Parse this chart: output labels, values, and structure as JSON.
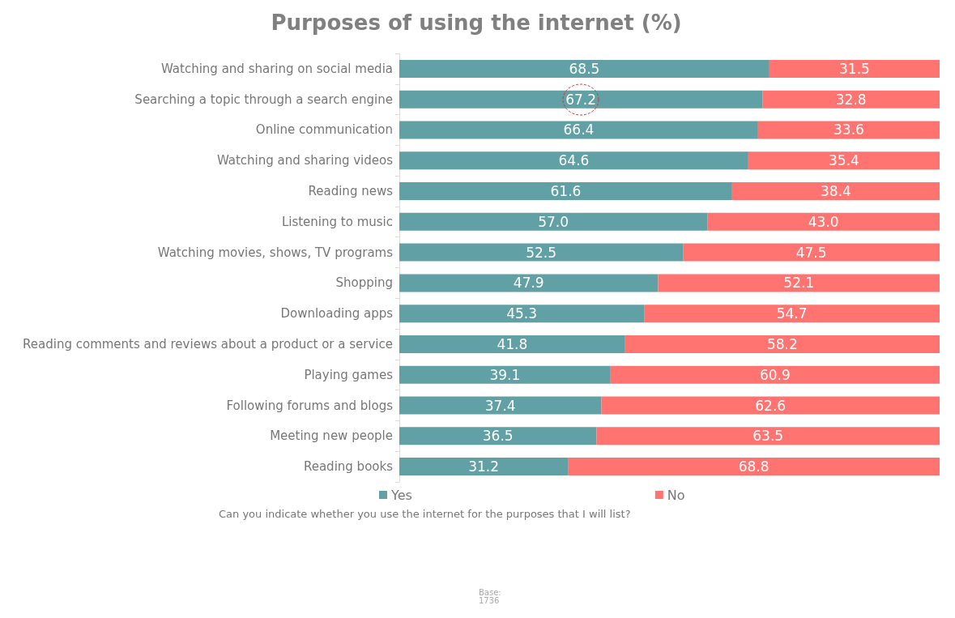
{
  "chart_data": {
    "type": "bar",
    "orientation": "horizontal",
    "stacked": true,
    "title": "Purposes of using the internet (%)",
    "categories": [
      "Watching and sharing on social media",
      "Searching a topic through a search engine",
      "Online communication",
      "Watching and sharing videos",
      "Reading news",
      "Listening to music",
      "Watching movies, shows, TV programs",
      "Shopping",
      "Downloading apps",
      "Reading comments and reviews about a product or a service",
      "Playing games",
      "Following forums and blogs",
      "Meeting new people",
      "Reading books"
    ],
    "series": [
      {
        "name": "Yes",
        "color": "#61a0a4",
        "values": [
          68.5,
          67.2,
          66.4,
          64.6,
          61.6,
          57.0,
          52.5,
          47.9,
          45.3,
          41.8,
          39.1,
          37.4,
          36.5,
          31.2
        ],
        "value_labels": [
          "68.5",
          "67.2",
          "66.4",
          "64.6",
          "61.6",
          "57.0",
          "52.5",
          "47.9",
          "45.3",
          "41.8",
          "39.1",
          "37.4",
          "36.5",
          "31.2"
        ]
      },
      {
        "name": "No",
        "color": "#ff7370",
        "values": [
          31.5,
          32.8,
          33.6,
          35.4,
          38.4,
          43.0,
          47.5,
          52.1,
          54.7,
          58.2,
          60.9,
          62.6,
          63.5,
          68.8
        ],
        "value_labels": [
          "31.5",
          "32.8",
          "33.6",
          "35.4",
          "38.4",
          "43.0",
          "47.5",
          "52.1",
          "54.7",
          "58.2",
          "60.9",
          "62.6",
          "63.5",
          "68.8"
        ]
      }
    ],
    "legend": "bottom",
    "tick_labels": "y",
    "annotations": [
      "Can you indicate whether you use the internet for the purposes that I will list?",
      "Base:\n1736"
    ]
  }
}
